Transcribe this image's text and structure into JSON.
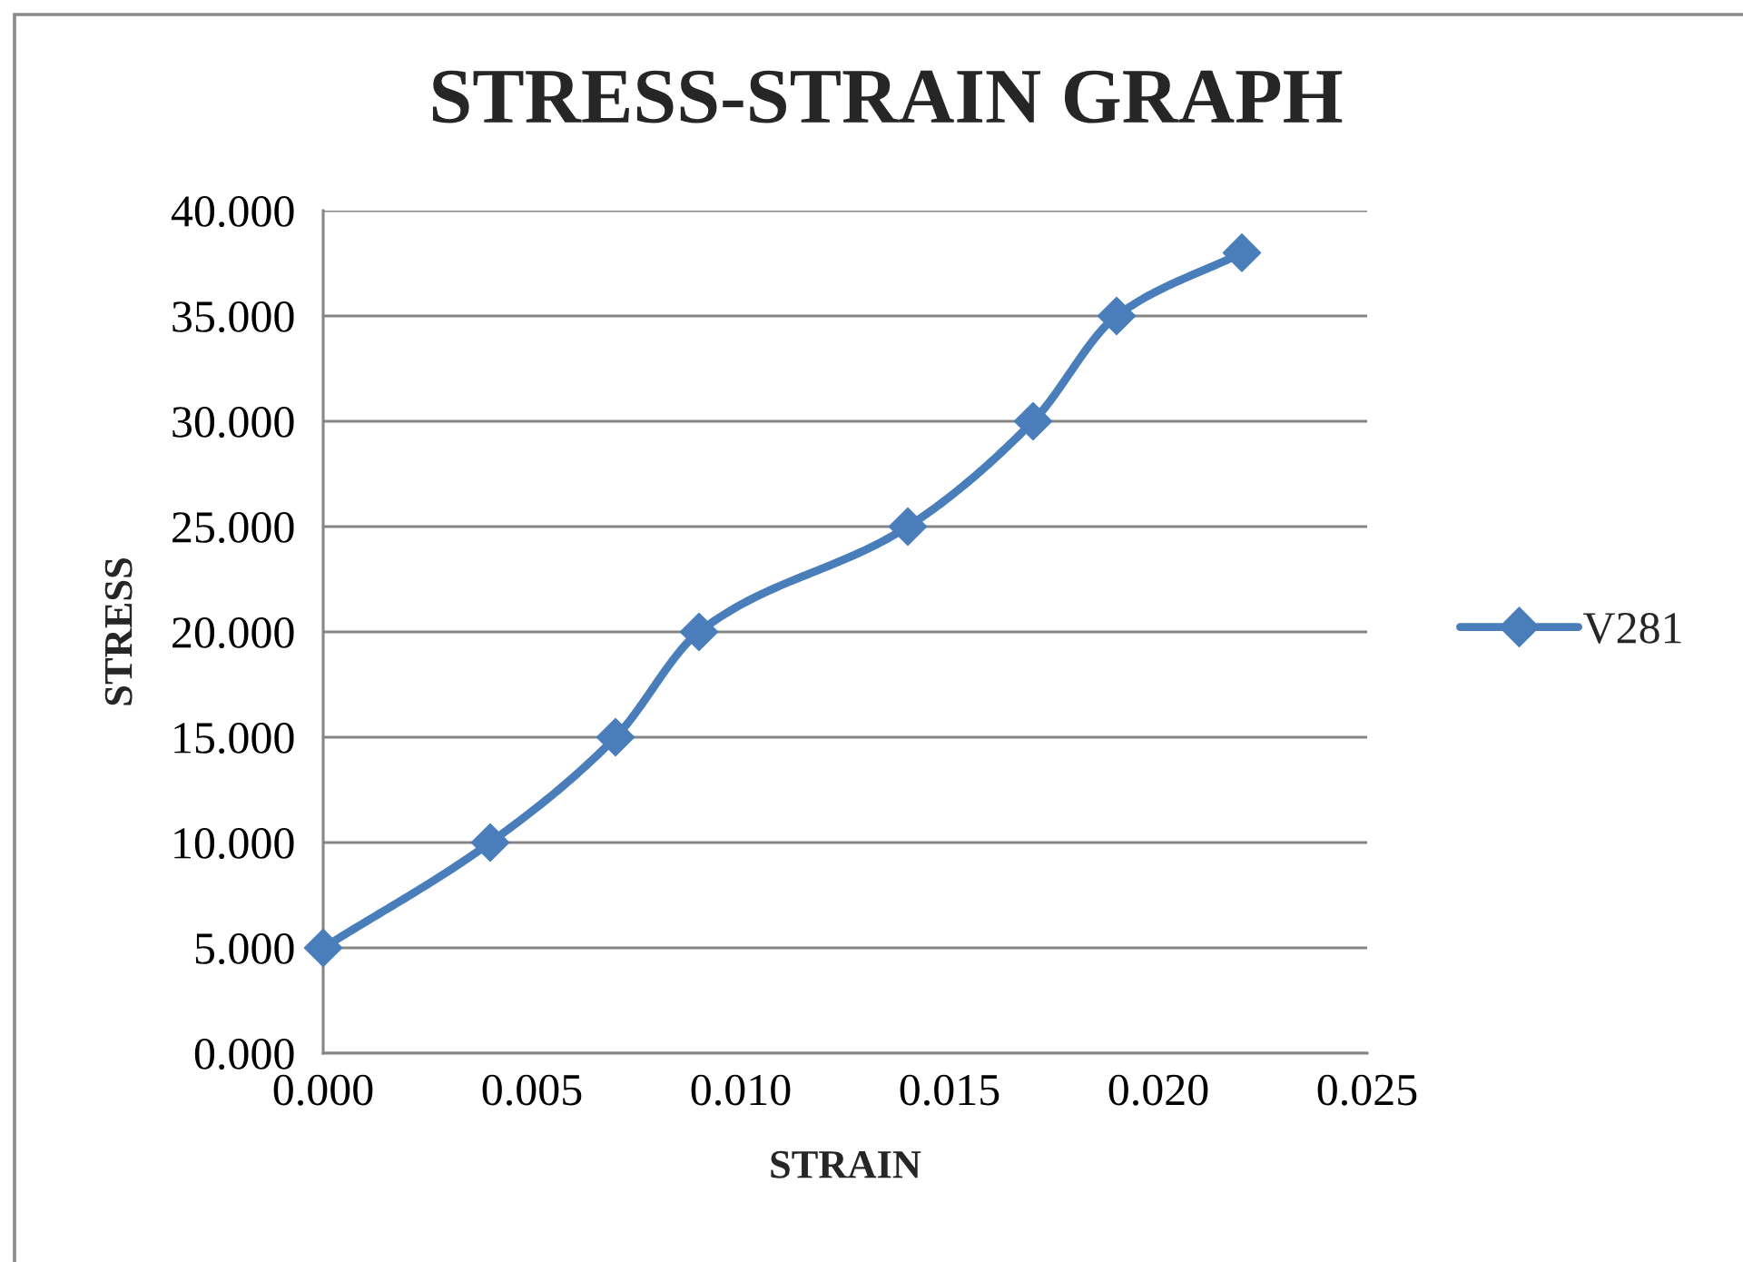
{
  "chart_data": {
    "type": "line",
    "title": "STRESS-STRAIN GRAPH",
    "xlabel": "STRAIN",
    "ylabel": "STRESS",
    "x": [
      0.0,
      0.004,
      0.007,
      0.009,
      0.014,
      0.017,
      0.019,
      0.022
    ],
    "series": [
      {
        "name": "V281",
        "color": "#4a7ebb",
        "values": [
          5,
          10,
          15,
          20,
          25,
          30,
          35,
          38
        ]
      }
    ],
    "xlim": [
      0,
      0.025
    ],
    "xticks": [
      {
        "value": 0,
        "label": "0.000"
      },
      {
        "value": 0.005,
        "label": "0.005"
      },
      {
        "value": 0.01,
        "label": "0.010"
      },
      {
        "value": 0.015,
        "label": "0.015"
      },
      {
        "value": 0.02,
        "label": "0.020"
      },
      {
        "value": 0.025,
        "label": "0.025"
      }
    ],
    "ylim": [
      0,
      40
    ],
    "yticks": [
      {
        "value": 0,
        "label": "0.000"
      },
      {
        "value": 5,
        "label": "5.000"
      },
      {
        "value": 10,
        "label": "10.000"
      },
      {
        "value": 15,
        "label": "15.000"
      },
      {
        "value": 20,
        "label": "20.000"
      },
      {
        "value": 25,
        "label": "25.000"
      },
      {
        "value": 30,
        "label": "30.000"
      },
      {
        "value": 35,
        "label": "35.000"
      },
      {
        "value": 40,
        "label": "40.000"
      }
    ],
    "grid": "y",
    "legend": "right",
    "marker": "diamond",
    "line_style": "solid"
  }
}
